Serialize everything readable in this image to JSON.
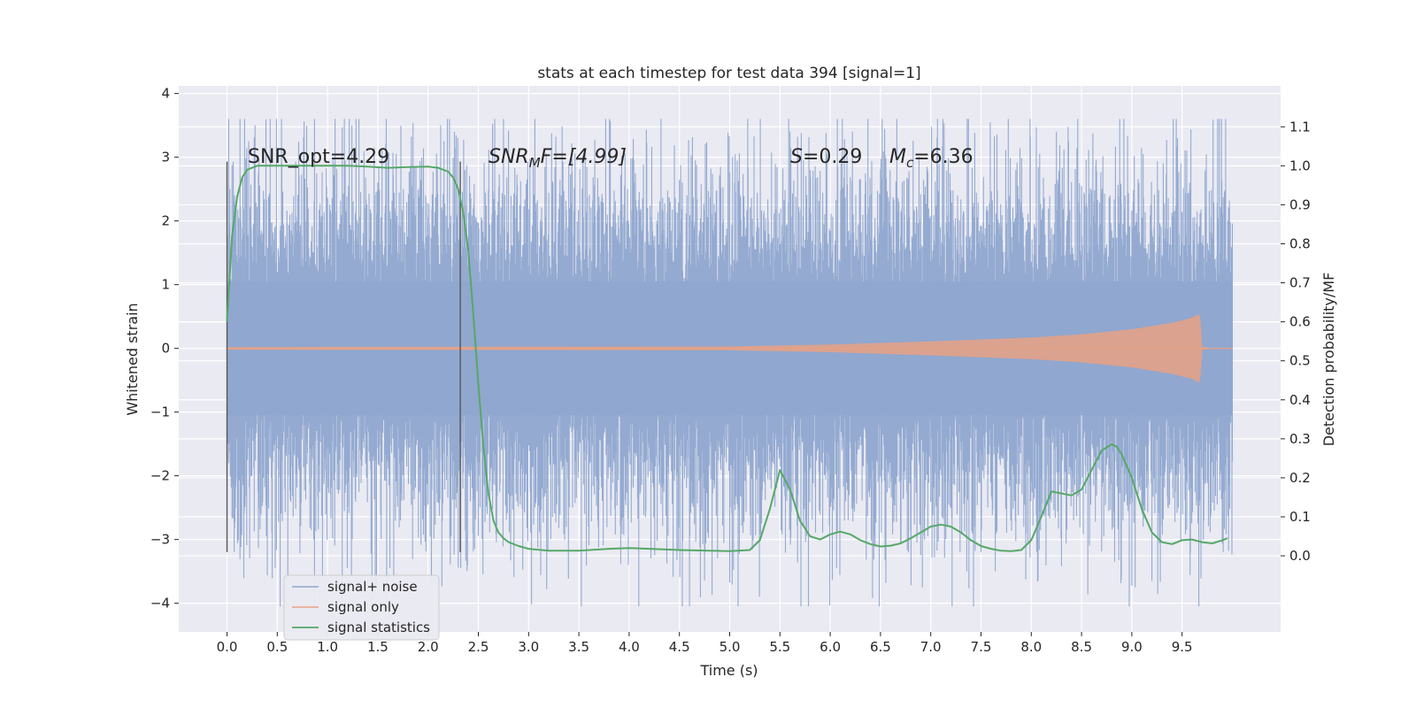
{
  "chart_data": {
    "type": "line",
    "title": "stats at each timestep for test data 394 [signal=1]",
    "xlabel": "Time (s)",
    "ylabel": "Whitened strain",
    "y2label": "Detection probability/MF",
    "xlim": [
      -0.48,
      10.48
    ],
    "ylim": [
      -4.45,
      4.12
    ],
    "y2lim": [
      -0.195,
      1.205
    ],
    "x_ticks": [
      "0.0",
      "0.5",
      "1.0",
      "1.5",
      "2.0",
      "2.5",
      "3.0",
      "3.5",
      "4.0",
      "4.5",
      "5.0",
      "5.5",
      "6.0",
      "6.5",
      "7.0",
      "7.5",
      "8.0",
      "8.5",
      "9.0",
      "9.5"
    ],
    "y_ticks": [
      "4",
      "3",
      "2",
      "1",
      "0",
      "−1",
      "−2",
      "−3",
      "−4"
    ],
    "y2_ticks": [
      "1.1",
      "1.0",
      "0.9",
      "0.8",
      "0.7",
      "0.6",
      "0.5",
      "0.4",
      "0.3",
      "0.2",
      "0.1",
      "0.0"
    ],
    "grid": true,
    "legend_position": "lower-left",
    "annotations": {
      "snr_opt": "SNR_opt=4.29",
      "snr_mf_main": "SNR",
      "snr_mf_sub": "M",
      "snr_mf_rest": "F=[4.99]",
      "s_main": "S",
      "s_rest": "=0.29",
      "mc_main": "M",
      "mc_sub": "c",
      "mc_rest": "=6.36"
    },
    "vertical_lines": [
      0.0,
      2.32
    ],
    "series": [
      {
        "name": "signal+ noise",
        "color": "#8fa6cf",
        "axis": "left",
        "x_range": [
          0.0,
          10.0
        ],
        "envelope_upper": 3.6,
        "envelope_lower": -4.05,
        "typical_std": 0.85
      },
      {
        "name": "signal only",
        "color": "#e8a184",
        "axis": "left",
        "x_range": [
          0.0,
          9.75
        ],
        "envelope": {
          "x": [
            0.0,
            5.0,
            6.0,
            7.0,
            8.0,
            8.5,
            9.0,
            9.4,
            9.6,
            9.68,
            9.7
          ],
          "amp": [
            0.02,
            0.03,
            0.06,
            0.11,
            0.17,
            0.22,
            0.3,
            0.4,
            0.48,
            0.55,
            0.02
          ]
        }
      },
      {
        "name": "signal statistics",
        "color": "#55a868",
        "axis": "right",
        "x": [
          0.0,
          0.05,
          0.1,
          0.15,
          0.2,
          0.3,
          0.5,
          0.7,
          1.0,
          1.2,
          1.4,
          1.6,
          1.8,
          2.0,
          2.1,
          2.2,
          2.25,
          2.3,
          2.35,
          2.4,
          2.45,
          2.5,
          2.55,
          2.6,
          2.65,
          2.7,
          2.75,
          2.8,
          2.9,
          3.0,
          3.2,
          3.5,
          3.8,
          4.0,
          4.2,
          4.5,
          5.0,
          5.2,
          5.3,
          5.4,
          5.5,
          5.6,
          5.7,
          5.8,
          5.9,
          6.0,
          6.1,
          6.2,
          6.3,
          6.4,
          6.5,
          6.6,
          6.7,
          6.8,
          7.0,
          7.1,
          7.2,
          7.3,
          7.4,
          7.5,
          7.6,
          7.7,
          7.8,
          7.9,
          8.0,
          8.1,
          8.2,
          8.3,
          8.4,
          8.5,
          8.6,
          8.7,
          8.8,
          8.85,
          8.9,
          9.0,
          9.1,
          9.2,
          9.3,
          9.4,
          9.5,
          9.6,
          9.7,
          9.8,
          9.9,
          9.95
        ],
        "y": [
          0.6,
          0.82,
          0.92,
          0.97,
          0.99,
          1.0,
          1.0,
          1.0,
          1.0,
          1.0,
          0.998,
          0.995,
          0.997,
          0.998,
          0.995,
          0.985,
          0.97,
          0.94,
          0.88,
          0.78,
          0.62,
          0.44,
          0.28,
          0.16,
          0.09,
          0.06,
          0.045,
          0.035,
          0.025,
          0.018,
          0.013,
          0.013,
          0.018,
          0.02,
          0.018,
          0.015,
          0.012,
          0.015,
          0.04,
          0.12,
          0.22,
          0.17,
          0.09,
          0.05,
          0.042,
          0.055,
          0.062,
          0.055,
          0.04,
          0.03,
          0.024,
          0.026,
          0.032,
          0.045,
          0.075,
          0.08,
          0.075,
          0.06,
          0.04,
          0.025,
          0.018,
          0.013,
          0.012,
          0.015,
          0.04,
          0.1,
          0.165,
          0.16,
          0.155,
          0.17,
          0.22,
          0.27,
          0.286,
          0.28,
          0.26,
          0.2,
          0.12,
          0.06,
          0.035,
          0.03,
          0.04,
          0.042,
          0.035,
          0.032,
          0.04,
          0.045
        ]
      }
    ]
  }
}
